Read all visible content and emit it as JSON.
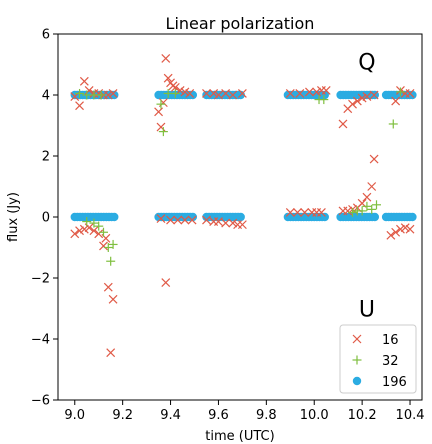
{
  "chart_data": {
    "type": "scatter",
    "title": "Linear polarization",
    "xlabel": "time (UTC)",
    "ylabel": "flux (Jy)",
    "xlim": [
      8.93,
      10.45
    ],
    "ylim": [
      -6,
      6
    ],
    "xticks": [
      "9.0",
      "9.2",
      "9.4",
      "9.6",
      "9.8",
      "10.0",
      "10.2",
      "10.4"
    ],
    "yticks": [
      "−6",
      "−4",
      "−2",
      "0",
      "2",
      "4",
      "6"
    ],
    "annotations": [
      {
        "text": "Q",
        "x": 10.22,
        "y": 5.1
      },
      {
        "text": "U",
        "x": 10.22,
        "y": -3.0
      }
    ],
    "legend": {
      "placement": "lower-right"
    },
    "series": [
      {
        "name": "16",
        "marker": "x",
        "color": "#e05a47",
        "points": [
          [
            9.0,
            3.95
          ],
          [
            9.02,
            3.65
          ],
          [
            9.04,
            4.45
          ],
          [
            9.06,
            4.15
          ],
          [
            9.08,
            4.05
          ],
          [
            9.1,
            4.05
          ],
          [
            9.12,
            4.0
          ],
          [
            9.14,
            4.0
          ],
          [
            9.16,
            4.05
          ],
          [
            9.35,
            3.45
          ],
          [
            9.36,
            2.95
          ],
          [
            9.37,
            3.75
          ],
          [
            9.38,
            5.2
          ],
          [
            9.39,
            4.55
          ],
          [
            9.4,
            4.4
          ],
          [
            9.41,
            4.3
          ],
          [
            9.42,
            4.25
          ],
          [
            9.44,
            4.15
          ],
          [
            9.46,
            4.1
          ],
          [
            9.48,
            4.05
          ],
          [
            9.55,
            4.05
          ],
          [
            9.58,
            4.05
          ],
          [
            9.6,
            4.0
          ],
          [
            9.63,
            4.05
          ],
          [
            9.66,
            4.0
          ],
          [
            9.7,
            4.05
          ],
          [
            9.9,
            4.05
          ],
          [
            9.94,
            4.05
          ],
          [
            9.98,
            4.1
          ],
          [
            10.01,
            4.1
          ],
          [
            10.03,
            4.15
          ],
          [
            10.05,
            4.15
          ],
          [
            10.12,
            3.05
          ],
          [
            10.14,
            3.55
          ],
          [
            10.16,
            3.7
          ],
          [
            10.18,
            3.8
          ],
          [
            10.2,
            3.9
          ],
          [
            10.22,
            3.95
          ],
          [
            10.25,
            4.0
          ],
          [
            10.34,
            3.8
          ],
          [
            10.36,
            4.15
          ],
          [
            10.38,
            4.05
          ],
          [
            10.4,
            4.05
          ],
          [
            9.0,
            -0.55
          ],
          [
            9.02,
            -0.45
          ],
          [
            9.04,
            -0.4
          ],
          [
            9.06,
            -0.35
          ],
          [
            9.08,
            -0.45
          ],
          [
            9.1,
            -0.55
          ],
          [
            9.12,
            -0.95
          ],
          [
            9.13,
            -0.7
          ],
          [
            9.14,
            -2.3
          ],
          [
            9.15,
            -4.45
          ],
          [
            9.16,
            -2.7
          ],
          [
            9.36,
            -0.05
          ],
          [
            9.38,
            -2.15
          ],
          [
            9.4,
            -0.1
          ],
          [
            9.43,
            -0.1
          ],
          [
            9.46,
            -0.1
          ],
          [
            9.49,
            -0.1
          ],
          [
            9.55,
            -0.1
          ],
          [
            9.58,
            -0.15
          ],
          [
            9.6,
            -0.15
          ],
          [
            9.63,
            -0.2
          ],
          [
            9.66,
            -0.2
          ],
          [
            9.68,
            -0.25
          ],
          [
            9.7,
            -0.25
          ],
          [
            9.9,
            0.15
          ],
          [
            9.93,
            0.15
          ],
          [
            9.96,
            0.15
          ],
          [
            9.99,
            0.15
          ],
          [
            10.01,
            0.15
          ],
          [
            10.03,
            0.15
          ],
          [
            10.12,
            0.2
          ],
          [
            10.14,
            0.2
          ],
          [
            10.16,
            0.25
          ],
          [
            10.18,
            0.3
          ],
          [
            10.2,
            0.45
          ],
          [
            10.22,
            0.65
          ],
          [
            10.24,
            1.0
          ],
          [
            10.25,
            1.9
          ],
          [
            10.32,
            -0.6
          ],
          [
            10.34,
            -0.5
          ],
          [
            10.36,
            -0.4
          ],
          [
            10.38,
            -0.35
          ],
          [
            10.4,
            -0.4
          ]
        ]
      },
      {
        "name": "32",
        "marker": "plus",
        "color": "#7fbf3f",
        "points": [
          [
            9.02,
            4.05
          ],
          [
            9.05,
            4.0
          ],
          [
            9.08,
            4.0
          ],
          [
            9.11,
            4.0
          ],
          [
            9.36,
            3.7
          ],
          [
            9.37,
            2.8
          ],
          [
            9.39,
            4.05
          ],
          [
            9.42,
            4.05
          ],
          [
            10.02,
            3.85
          ],
          [
            10.04,
            3.85
          ],
          [
            10.33,
            3.05
          ],
          [
            10.36,
            4.1
          ],
          [
            9.05,
            -0.15
          ],
          [
            9.08,
            -0.2
          ],
          [
            9.1,
            -0.3
          ],
          [
            9.12,
            -0.5
          ],
          [
            9.14,
            -1.0
          ],
          [
            9.15,
            -1.45
          ],
          [
            9.16,
            -0.9
          ],
          [
            10.16,
            0.15
          ],
          [
            10.18,
            0.2
          ],
          [
            10.2,
            0.2
          ],
          [
            10.22,
            0.35
          ],
          [
            10.24,
            0.25
          ],
          [
            10.26,
            0.4
          ]
        ]
      },
      {
        "name": "196",
        "marker": "circle",
        "color": "#2bace2",
        "segments": [
          [
            9.0,
            9.17
          ],
          [
            9.35,
            9.5
          ],
          [
            9.55,
            9.7
          ],
          [
            9.89,
            10.05
          ],
          [
            10.11,
            10.26
          ],
          [
            10.3,
            10.42
          ]
        ],
        "q_value": 4.0,
        "u_value": 0.0
      }
    ]
  }
}
